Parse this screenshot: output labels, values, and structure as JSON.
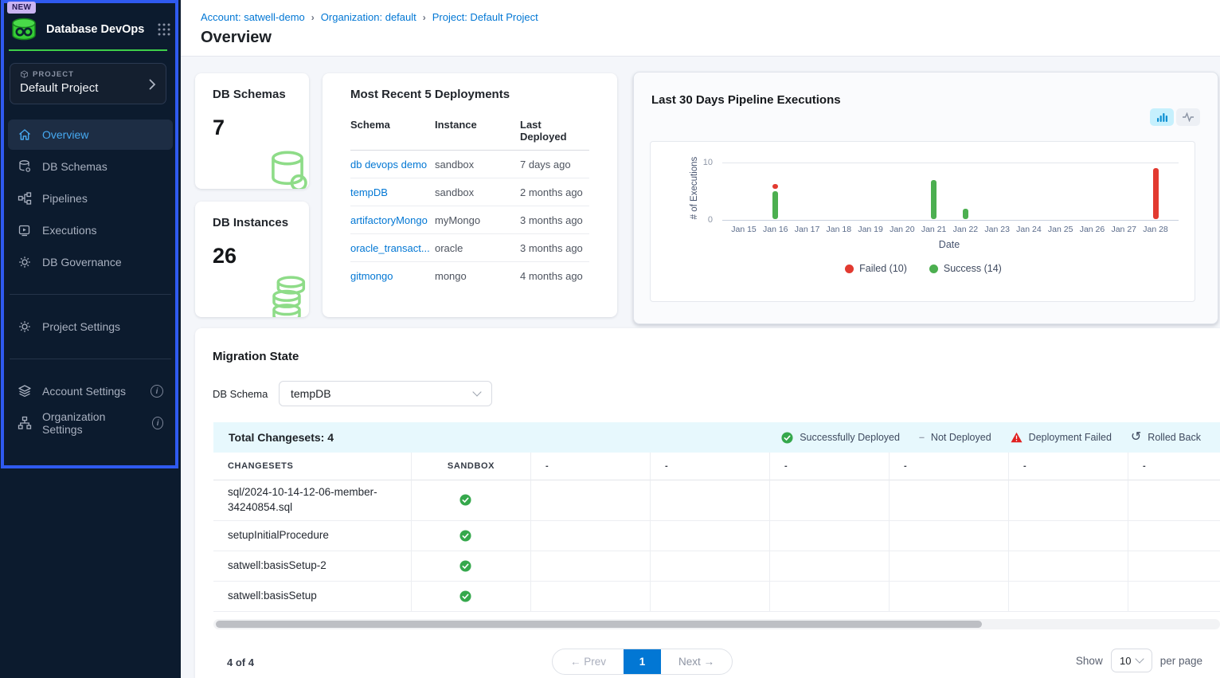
{
  "sidebar": {
    "badge": "NEW",
    "app_title": "Database DevOps",
    "project_label": "PROJECT",
    "project_name": "Default Project",
    "nav": [
      {
        "label": "Overview",
        "icon": "home",
        "active": true
      },
      {
        "label": "DB Schemas",
        "icon": "database"
      },
      {
        "label": "Pipelines",
        "icon": "pipeline"
      },
      {
        "label": "Executions",
        "icon": "play-square"
      },
      {
        "label": "DB Governance",
        "icon": "gear"
      }
    ],
    "nav_secondary": [
      {
        "label": "Project Settings",
        "icon": "gear"
      }
    ],
    "nav_tertiary": [
      {
        "label": "Account Settings",
        "icon": "layers",
        "info": true
      },
      {
        "label": "Organization Settings",
        "icon": "org-chart",
        "info": true
      }
    ]
  },
  "breadcrumb": {
    "items": [
      "Account: satwell-demo",
      "Organization: default",
      "Project: Default Project"
    ],
    "separator": "›"
  },
  "page_title": "Overview",
  "cards": {
    "db_schemas": {
      "title": "DB Schemas",
      "value": "7"
    },
    "db_instances": {
      "title": "DB Instances",
      "value": "26"
    }
  },
  "deployments": {
    "title": "Most Recent 5 Deployments",
    "columns": [
      "Schema",
      "Instance",
      "Last Deployed"
    ],
    "rows": [
      {
        "schema": "db devops demo",
        "instance": "sandbox",
        "last_deployed": "7 days ago"
      },
      {
        "schema": "tempDB",
        "instance": "sandbox",
        "last_deployed": "2 months ago"
      },
      {
        "schema": "artifactoryMongo",
        "instance": "myMongo",
        "last_deployed": "3 months ago"
      },
      {
        "schema": "oracle_transact...",
        "instance": "oracle",
        "last_deployed": "3 months ago"
      },
      {
        "schema": "gitmongo",
        "instance": "mongo",
        "last_deployed": "4 months ago"
      }
    ]
  },
  "chart_data": {
    "type": "bar",
    "title": "Last 30 Days Pipeline Executions",
    "xlabel": "Date",
    "ylabel": "# of Executions",
    "ylim": [
      0,
      10
    ],
    "grid": "top-line-only",
    "legend_position": "bottom",
    "categories": [
      "Jan 15",
      "Jan 16",
      "Jan 17",
      "Jan 18",
      "Jan 19",
      "Jan 20",
      "Jan 21",
      "Jan 22",
      "Jan 23",
      "Jan 24",
      "Jan 25",
      "Jan 26",
      "Jan 27",
      "Jan 28"
    ],
    "series": [
      {
        "name": "Failed",
        "color": "#e23a30",
        "values": [
          0,
          1,
          0,
          0,
          0,
          0,
          0,
          0,
          0,
          0,
          0,
          0,
          0,
          9
        ]
      },
      {
        "name": "Success",
        "color": "#4caf50",
        "values": [
          0,
          5,
          0,
          0,
          0,
          0,
          7,
          2,
          0,
          0,
          0,
          0,
          0,
          0
        ]
      }
    ],
    "legend": [
      {
        "label": "Failed (10)",
        "color": "#e23a30"
      },
      {
        "label": "Success (14)",
        "color": "#4caf50"
      }
    ]
  },
  "migration": {
    "title": "Migration State",
    "db_schema_label": "DB Schema",
    "db_schema_value": "tempDB",
    "total_label": "Total Changesets: 4",
    "legend": [
      {
        "label": "Successfully Deployed",
        "icon": "check-circle",
        "color": "#35a84c"
      },
      {
        "label": "Not Deployed",
        "icon": "dash",
        "color": "#9ba3b0"
      },
      {
        "label": "Deployment Failed",
        "icon": "warning-triangle",
        "color": "#e02020"
      },
      {
        "label": "Rolled Back",
        "icon": "rollback-arrow",
        "color": "#3f4a5f"
      }
    ],
    "columns": [
      "CHANGESETS",
      "SANDBOX",
      "-",
      "-",
      "-",
      "-",
      "-",
      "-"
    ],
    "rows": [
      {
        "changeset": "sql/2024-10-14-12-06-member-34240854.sql",
        "sandbox": "success"
      },
      {
        "changeset": "setupInitialProcedure",
        "sandbox": "success"
      },
      {
        "changeset": "satwell:basisSetup-2",
        "sandbox": "success"
      },
      {
        "changeset": "satwell:basisSetup",
        "sandbox": "success"
      }
    ]
  },
  "pagination": {
    "count": "4 of 4",
    "prev": "← Prev",
    "page": "1",
    "next": "Next →",
    "show_label": "Show",
    "page_size": "10",
    "per_page_label": "per page"
  },
  "colors": {
    "link_blue": "#0277d4",
    "sidebar_bg": "#0c1b2e",
    "sidebar_ring": "#2f5af0",
    "active_nav": "#46a9f1",
    "success_green": "#35a84c",
    "failed_red": "#e23a30",
    "brand_green": "#3ecf4a"
  }
}
